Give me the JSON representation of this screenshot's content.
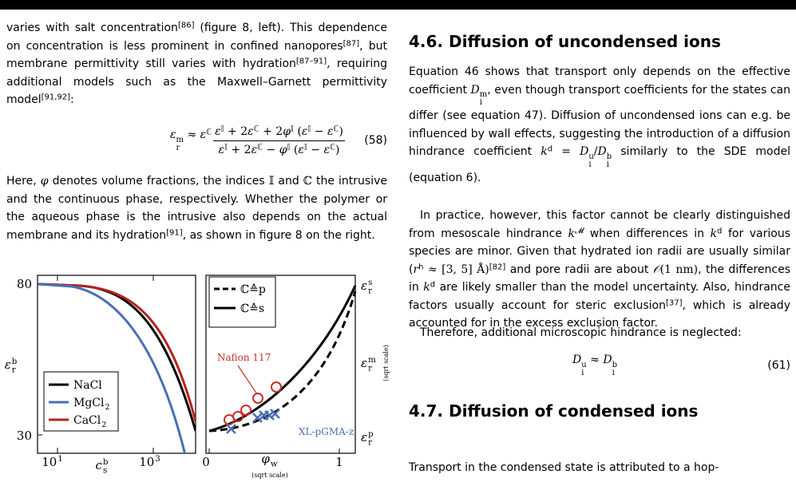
{
  "left": {
    "para1": [
      {
        "t": "varies with salt concentration"
      },
      {
        "sup": "[86]"
      },
      {
        "t": " (figure 8, left). This dependence on concentration is less prominent in confined nanopores"
      },
      {
        "sup": "[87]"
      },
      {
        "t": ", but membrane permittivity still varies with hydration"
      },
      {
        "sup": "[87–91]"
      },
      {
        "t": ", requiring additional models such as the Maxwell–Garnett permittivity model"
      },
      {
        "sup": "[91,92]"
      },
      {
        "t": ":"
      }
    ],
    "eq58": {
      "lhs": [
        {
          "m": "ε",
          "sub": "r",
          "sup": "m"
        },
        {
          "r": " ≈ "
        },
        {
          "m": "ε",
          "sup": "ℂ"
        }
      ],
      "num": [
        {
          "m": "ε",
          "sup": "𝕀"
        },
        {
          "r": " + 2"
        },
        {
          "m": "ε",
          "sup": "ℂ"
        },
        {
          "r": " + 2"
        },
        {
          "m": "φ",
          "sup": "𝕀"
        },
        {
          "r": " ("
        },
        {
          "m": "ε",
          "sup": "𝕀"
        },
        {
          "r": " − "
        },
        {
          "m": "ε",
          "sup": "ℂ"
        },
        {
          "r": ")"
        }
      ],
      "den": [
        {
          "m": "ε",
          "sup": "𝕀"
        },
        {
          "r": " + 2"
        },
        {
          "m": "ε",
          "sup": "ℂ"
        },
        {
          "r": " − "
        },
        {
          "m": "φ",
          "sup": "𝕀"
        },
        {
          "r": " ("
        },
        {
          "m": "ε",
          "sup": "𝕀"
        },
        {
          "r": " − "
        },
        {
          "m": "ε",
          "sup": "ℂ"
        },
        {
          "r": ")"
        }
      ],
      "number": "(58)"
    },
    "para2": [
      {
        "t": "Here, "
      },
      {
        "m": "φ"
      },
      {
        "t": " denotes volume fractions, the indices "
      },
      {
        "r": "𝕀"
      },
      {
        "t": " and "
      },
      {
        "r": "ℂ"
      },
      {
        "t": " the intrusive and the continuous phase, respectively. Whether the polymer or the aqueous phase is the intrusive also depends on the actual membrane and its hydration"
      },
      {
        "sup": "[91]"
      },
      {
        "t": ", as shown in figure 8 on the right."
      }
    ]
  },
  "figure": {
    "left_panel": {
      "yticks": [
        "80",
        "30"
      ],
      "xticks": [
        {
          "r": "10",
          "sup": "1"
        },
        {
          "r": "10",
          "sup": "3"
        }
      ],
      "ylabel": {
        "m": "ε",
        "sub": "r",
        "sup": "b"
      },
      "xlabel": {
        "m": "c",
        "sub": "s",
        "sup": "b"
      },
      "legend": [
        {
          "label": [
            {
              "r": "NaCl"
            }
          ],
          "color": "#000000"
        },
        {
          "label": [
            {
              "r": "MgCl",
              "sub": "2"
            }
          ],
          "color": "#4a6fb5"
        },
        {
          "label": [
            {
              "r": "CaCl",
              "sub": "2"
            }
          ],
          "color": "#b5221e"
        }
      ]
    },
    "right_panel": {
      "legend": [
        {
          "label": [
            {
              "r": "ℂ≙p"
            }
          ],
          "dash": "dashed"
        },
        {
          "label": [
            {
              "r": "ℂ≙s"
            }
          ],
          "dash": "solid"
        }
      ],
      "annotations": [
        {
          "text": "Nafion 117",
          "color": "#c8302a"
        },
        {
          "text": "XL-pGMA-z",
          "color": "#4a6fb5"
        }
      ],
      "xticks": [
        "0",
        "1"
      ],
      "xlabel": {
        "m": "φ",
        "sub": "w"
      },
      "xnote": "(sqrt scale)",
      "right_labels": [
        {
          "m": "ε",
          "sub": "r",
          "sup": "s"
        },
        {
          "m": "ε",
          "sub": "r",
          "sup": "m"
        },
        {
          "m": "ε",
          "sub": "r",
          "sup": "p"
        }
      ],
      "ynote": "(sqrt scale)"
    }
  },
  "right": {
    "heading1": "4.6. Diffusion of uncondensed ions",
    "para1": [
      {
        "t": "Equation 46 shows that transport only depends on the effective coefficient "
      },
      {
        "m": "D",
        "sub": "i",
        "sup": "m"
      },
      {
        "t": ", even though transport coefficients for the states can differ (see equation 47). Diffusion of uncondensed ions can e.g. be influenced by wall effects, suggesting the introduction of a diffusion hindrance coefficient "
      },
      {
        "m": "k",
        "sup": "d"
      },
      {
        "r": " = "
      },
      {
        "m": "D",
        "sub": "i",
        "sup": "u"
      },
      {
        "r": "/"
      },
      {
        "m": "D",
        "sub": "i",
        "sup": "b"
      },
      {
        "t": " similarly to the SDE model (equation 6)."
      }
    ],
    "para2": [
      {
        "t": "In practice, however, this factor cannot be clearly distinguished from mesoscale hindrance "
      },
      {
        "m": "k",
        "sup": "𝓜"
      },
      {
        "t": " when differences in "
      },
      {
        "m": "k",
        "sup": "d"
      },
      {
        "t": " for various species are minor. Given that hydrated ion radii are usually similar ("
      },
      {
        "m": "r",
        "sup": "h"
      },
      {
        "r": " ≈ [3, 5] Å)"
      },
      {
        "sup": "[82]"
      },
      {
        "t": " and pore radii are about "
      },
      {
        "m": "𝒪"
      },
      {
        "r": "(1 nm)"
      },
      {
        "t": ", the differences in "
      },
      {
        "m": "k",
        "sup": "d"
      },
      {
        "t": " are likely smaller than the model uncertainty. Also, hindrance factors usually account for steric exclusion"
      },
      {
        "sup": "[37]"
      },
      {
        "t": ", which is already accounted for in the excess exclusion factor."
      }
    ],
    "para3": [
      {
        "t": "Therefore, additional microscopic hindrance is neglected:"
      }
    ],
    "eq61": {
      "expr": [
        {
          "m": "D",
          "sub": "i",
          "sup": "u"
        },
        {
          "r": " ≈ "
        },
        {
          "m": "D",
          "sub": "i",
          "sup": "b"
        }
      ],
      "number": "(61)"
    },
    "heading2": "4.7. Diffusion of condensed ions",
    "para4": [
      {
        "t": "Transport in the condensed state is attributed to a hop-"
      }
    ]
  }
}
